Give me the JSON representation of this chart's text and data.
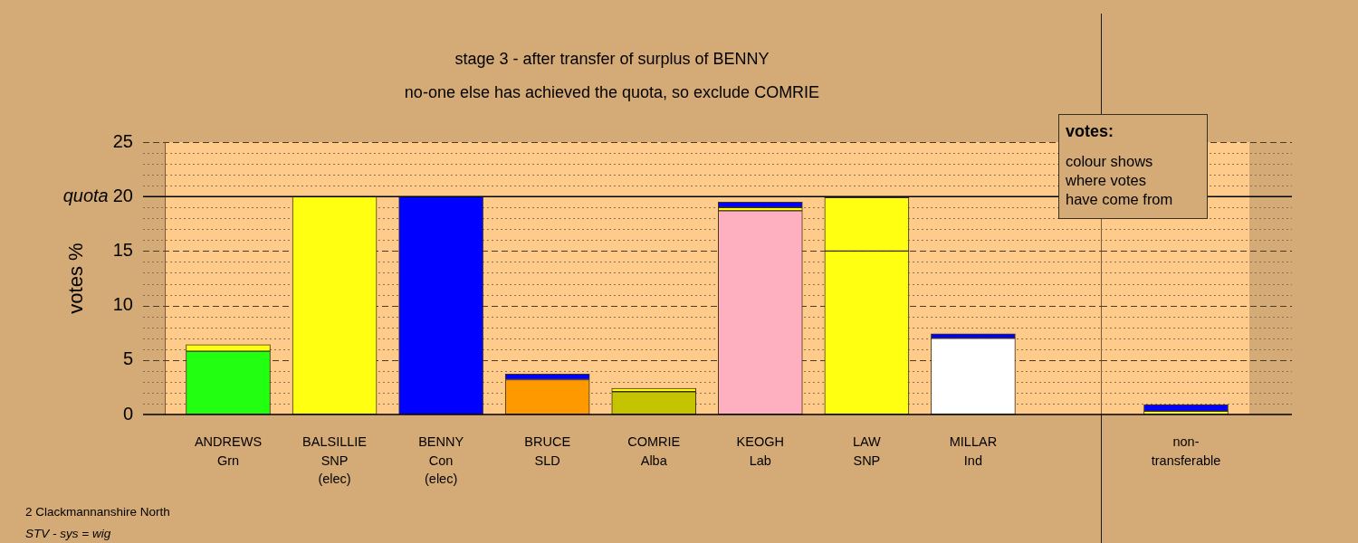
{
  "chart_data": [
    {
      "type": "bar",
      "title": "stage 3 - after transfer of surplus of BENNY",
      "subtitle": "no-one else has achieved the quota, so exclude COMRIE",
      "ylabel": "votes %",
      "categories": [
        "ANDREWS\nGrn",
        "BALSILLIE\nSNP\n(elec)",
        "BENNY\nCon\n(elec)",
        "BRUCE\nSLD",
        "COMRIE\nAlba",
        "KEOGH\nLab",
        "LAW\nSNP",
        "MILLAR\nInd"
      ],
      "stacked": true,
      "series": [
        {
          "colors": [
            "#22ff11",
            "#ffff11",
            "#0000ff",
            "#ff9900",
            "#c4c400",
            "#ffb0c0",
            "#ffff11",
            "#ffffff"
          ],
          "values": [
            5.8,
            20,
            20,
            3.2,
            2.1,
            18.7,
            15.0,
            7.0
          ]
        },
        {
          "color": "#ffff11",
          "values": [
            0.6,
            null,
            null,
            null,
            0.3,
            0.3,
            4.9,
            null
          ]
        },
        {
          "color": "#0000ff",
          "values": [
            null,
            null,
            null,
            0.5,
            null,
            0.5,
            null,
            0.4
          ]
        }
      ],
      "ylim": [
        0,
        25
      ],
      "yticks": [
        0,
        {
          "value": 1,
          "label": null
        },
        {
          "value": 2,
          "label": null
        },
        {
          "value": 3,
          "label": null
        },
        {
          "value": 4,
          "label": null
        },
        5,
        {
          "value": 6,
          "label": null
        },
        {
          "value": 7,
          "label": null
        },
        {
          "value": 8,
          "label": null
        },
        {
          "value": 9,
          "label": null
        },
        10,
        {
          "value": 11,
          "label": null
        },
        {
          "value": 12,
          "label": null
        },
        {
          "value": 13,
          "label": null
        },
        {
          "value": 14,
          "label": null
        },
        15,
        {
          "value": 16,
          "label": null
        },
        {
          "value": 17,
          "label": null
        },
        {
          "value": 18,
          "label": null
        },
        {
          "value": 19,
          "label": null
        },
        20,
        {
          "value": 21,
          "label": null
        },
        {
          "value": 22,
          "label": null
        },
        {
          "value": 23,
          "label": null
        },
        {
          "value": 24,
          "label": null
        },
        25
      ],
      "grid": "y",
      "ref_lines": [
        {
          "axis": "y",
          "value": 20,
          "label": "quota",
          "color": "#000000"
        }
      ],
      "annotations": [
        "votes:",
        "colour shows\nwhere votes\nhave come from",
        "2 Clackmannanshire North",
        "STV - sys = wig"
      ]
    },
    {
      "type": "bar",
      "categories": [
        "non-\ntransferable"
      ],
      "stacked": true,
      "series": [
        {
          "color": "#ffff11",
          "values": [
            0.3
          ]
        },
        {
          "color": "#0000ff",
          "values": [
            0.6
          ]
        }
      ],
      "ylim": [
        0,
        25
      ],
      "yticks": [
        0,
        {
          "value": 1,
          "label": null
        },
        {
          "value": 2,
          "label": null
        },
        {
          "value": 3,
          "label": null
        },
        {
          "value": 4,
          "label": null
        },
        5,
        {
          "value": 6,
          "label": null
        },
        {
          "value": 7,
          "label": null
        },
        {
          "value": 8,
          "label": null
        },
        {
          "value": 9,
          "label": null
        },
        10,
        {
          "value": 11,
          "label": null
        },
        {
          "value": 12,
          "label": null
        },
        {
          "value": 13,
          "label": null
        },
        {
          "value": 14,
          "label": null
        },
        15,
        {
          "value": 16,
          "label": null
        },
        {
          "value": 17,
          "label": null
        },
        {
          "value": 18,
          "label": null
        },
        {
          "value": 19,
          "label": null
        },
        20,
        {
          "value": 21,
          "label": null
        },
        {
          "value": 22,
          "label": null
        },
        {
          "value": 23,
          "label": null
        },
        {
          "value": 24,
          "label": null
        },
        25
      ],
      "grid": "y",
      "ref_lines": [
        {
          "axis": "y",
          "value": 20,
          "color": "#000000"
        }
      ],
      "tick_labels": "x"
    }
  ]
}
